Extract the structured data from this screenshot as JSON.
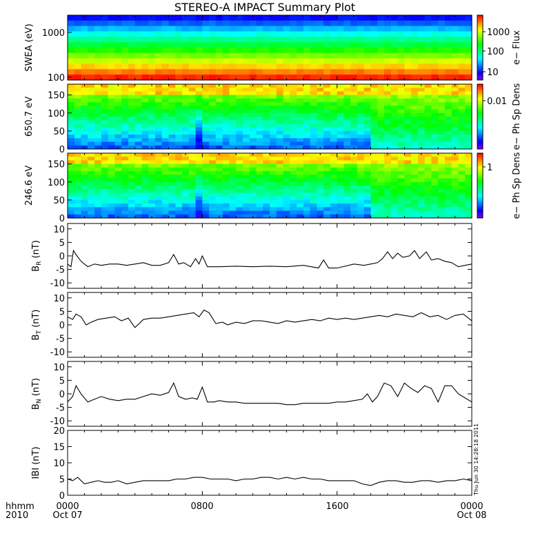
{
  "title": "STEREO-A IMPACT Summary Plot",
  "timestamp": "Thu Jun 30 14:28:18 2011",
  "colors": {
    "axis": "#000000",
    "trace": "#000000",
    "spectrogram_scale": [
      "#7f00ff",
      "#0000ff",
      "#0080ff",
      "#00ffff",
      "#00ff80",
      "#00ff00",
      "#80ff00",
      "#ffff00",
      "#ff8000",
      "#ff0000"
    ]
  },
  "x_axis": {
    "labels_top": [
      "0000",
      "0800",
      "1600",
      "0000"
    ],
    "labels_bottom": [
      "Oct 07",
      "",
      "",
      "Oct 08"
    ],
    "corner_label_top": "hhmm",
    "corner_label_bottom": "2010"
  },
  "chart_data": [
    {
      "type": "heatmap",
      "ylabel": "SWEA (eV)",
      "yscale": "log",
      "ylim": [
        95,
        2000
      ],
      "yticks": [
        "1000",
        "100"
      ],
      "colorbar_label": "e− Flux",
      "colorbar_ticks": [
        "1000",
        "100",
        "10"
      ],
      "x_hours": [
        0,
        24
      ],
      "energy_eV": [
        100,
        150,
        200,
        300,
        500,
        700,
        1000,
        1500,
        2000
      ],
      "level": [
        0.95,
        0.9,
        0.85,
        0.75,
        0.6,
        0.5,
        0.4,
        0.25,
        0.1
      ]
    },
    {
      "type": "heatmap",
      "ylabel": "650.7 eV",
      "ylim": [
        0,
        180
      ],
      "yticks": [
        "150",
        "100",
        "50",
        "0"
      ],
      "colorbar_label": "e− Ph Sp Dens",
      "colorbar_ticks": [
        "0.01"
      ],
      "x_hours": [
        0,
        24
      ],
      "pitch_angle_deg": [
        0,
        180
      ]
    },
    {
      "type": "heatmap",
      "ylabel": "246.6 eV",
      "ylim": [
        0,
        180
      ],
      "yticks": [
        "150",
        "100",
        "50",
        "0"
      ],
      "colorbar_label": "e− Ph Sp Dens",
      "colorbar_ticks": [
        "1"
      ],
      "x_hours": [
        0,
        24
      ],
      "pitch_angle_deg": [
        0,
        180
      ]
    },
    {
      "type": "line",
      "ylabel": "B_R (nT)",
      "ylabel_main": "B",
      "ylabel_sub": "R",
      "ylabel_unit": "(nT)",
      "ylim": [
        -12,
        12
      ],
      "yticks": [
        "10",
        "5",
        "0",
        "-5",
        "-10"
      ],
      "series": [
        {
          "x": [
            0,
            0.2,
            0.35,
            0.5,
            0.8,
            1.2,
            1.6,
            2.0,
            2.5,
            3,
            3.5,
            4,
            4.5,
            5,
            5.5,
            6,
            6.3,
            6.6,
            6.9,
            7.3,
            7.6,
            7.8,
            8.0,
            8.3,
            9,
            10,
            11,
            12,
            13,
            14,
            14.9,
            15.2,
            15.5,
            16,
            17,
            17.6,
            18,
            18.4,
            18.7,
            19.0,
            19.3,
            19.6,
            19.9,
            20.3,
            20.6,
            20.9,
            21.3,
            21.6,
            22,
            22.4,
            22.8,
            23.2,
            23.6,
            24
          ],
          "y": [
            -3,
            -4,
            2,
            0.5,
            -2,
            -4,
            -3,
            -3.5,
            -3,
            -3,
            -3.5,
            -3,
            -2.5,
            -3.5,
            -3.5,
            -2.5,
            0.5,
            -3,
            -2.5,
            -4,
            -1,
            -3,
            0,
            -4,
            -4,
            -3.8,
            -4,
            -3.8,
            -4,
            -3.5,
            -4.5,
            -1.5,
            -4.5,
            -4.5,
            -3,
            -3.5,
            -3,
            -2.5,
            -1,
            1.5,
            -1,
            1,
            -0.5,
            0,
            2,
            -1,
            1.5,
            -1.5,
            -1,
            -2,
            -2.5,
            -4,
            -3.5,
            -3
          ]
        }
      ]
    },
    {
      "type": "line",
      "ylabel": "B_T (nT)",
      "ylabel_main": "B",
      "ylabel_sub": "T",
      "ylabel_unit": "(nT)",
      "ylim": [
        -12,
        12
      ],
      "yticks": [
        "10",
        "5",
        "0",
        "-5",
        "-10"
      ],
      "series": [
        {
          "x": [
            0,
            0.3,
            0.5,
            0.8,
            1.1,
            1.4,
            1.8,
            2.3,
            2.8,
            3.2,
            3.6,
            4.0,
            4.5,
            5,
            5.5,
            6,
            6.5,
            7,
            7.5,
            7.8,
            8.1,
            8.4,
            8.8,
            9.2,
            9.5,
            10,
            10.5,
            11,
            11.5,
            12,
            12.5,
            13,
            13.5,
            14,
            14.5,
            15,
            15.5,
            16,
            16.5,
            17,
            17.5,
            18,
            18.5,
            19,
            19.5,
            20,
            20.5,
            21,
            21.5,
            22,
            22.5,
            23,
            23.5,
            24
          ],
          "y": [
            3,
            2,
            4,
            3,
            0,
            1,
            2,
            2.5,
            3,
            1.5,
            2.5,
            -1,
            2,
            2.5,
            2.5,
            3,
            3.5,
            4,
            4.5,
            3,
            5.5,
            4.5,
            0.5,
            1,
            0,
            1,
            0.5,
            1.5,
            1.5,
            1,
            0.5,
            1.5,
            1,
            1.5,
            2,
            1.5,
            2.5,
            2,
            2.5,
            2,
            2.5,
            3,
            3.5,
            3,
            4,
            3.5,
            3,
            4.5,
            3,
            3.5,
            2,
            3.5,
            4,
            1.5
          ]
        }
      ]
    },
    {
      "type": "line",
      "ylabel": "B_N (nT)",
      "ylabel_main": "B",
      "ylabel_sub": "N",
      "ylabel_unit": "(nT)",
      "ylim": [
        -12,
        12
      ],
      "yticks": [
        "10",
        "5",
        "0",
        "-5",
        "-10"
      ],
      "series": [
        {
          "x": [
            0,
            0.3,
            0.5,
            0.8,
            1.2,
            1.6,
            2.0,
            2.5,
            3,
            3.5,
            4,
            4.5,
            5,
            5.5,
            6,
            6.3,
            6.6,
            7,
            7.4,
            7.7,
            8.0,
            8.3,
            8.7,
            9,
            9.5,
            10,
            10.5,
            11,
            11.5,
            12,
            12.5,
            13,
            13.5,
            14,
            14.5,
            15,
            15.5,
            16,
            16.5,
            17,
            17.5,
            17.8,
            18.1,
            18.4,
            18.8,
            19.2,
            19.6,
            20,
            20.4,
            20.8,
            21.2,
            21.6,
            22,
            22.4,
            22.8,
            23.2,
            23.6,
            24
          ],
          "y": [
            -3,
            -1,
            3,
            0,
            -3,
            -2,
            -1,
            -2,
            -2.5,
            -2,
            -2,
            -1,
            0,
            -0.5,
            0.5,
            4,
            -1,
            -2,
            -1.5,
            -2,
            2.5,
            -3,
            -3,
            -2.5,
            -3,
            -3,
            -3.5,
            -3.5,
            -3.5,
            -3.5,
            -3.5,
            -4,
            -4,
            -3.5,
            -3.5,
            -3.5,
            -3.5,
            -3,
            -3,
            -2.5,
            -2,
            0,
            -3,
            -1,
            4,
            3,
            -1,
            4,
            2,
            0.5,
            3,
            2,
            -3,
            3,
            3,
            0,
            -1.5,
            -3
          ]
        }
      ]
    },
    {
      "type": "line",
      "ylabel": "|B| (nT)",
      "ylabel_main": "IBI",
      "ylabel_sub": "",
      "ylabel_unit": "(nT)",
      "ylim": [
        0,
        20
      ],
      "yticks": [
        "20",
        "15",
        "10",
        "5",
        "0"
      ],
      "series": [
        {
          "x": [
            0,
            0.3,
            0.6,
            1,
            1.4,
            1.8,
            2.2,
            2.6,
            3,
            3.5,
            4,
            4.5,
            5,
            5.5,
            6,
            6.5,
            7,
            7.5,
            8,
            8.5,
            9,
            9.5,
            10,
            10.5,
            11,
            11.5,
            12,
            12.5,
            13,
            13.5,
            14,
            14.5,
            15,
            15.5,
            16,
            16.5,
            17,
            17.5,
            18,
            18.5,
            19,
            19.5,
            20,
            20.5,
            21,
            21.5,
            22,
            22.5,
            23,
            23.5,
            24
          ],
          "y": [
            5,
            4.5,
            5.5,
            3.5,
            4,
            4.5,
            4,
            4,
            4.5,
            3.5,
            4,
            4.5,
            4.5,
            4.5,
            4.5,
            5,
            5,
            5.5,
            5.5,
            5,
            5,
            5,
            4.5,
            5,
            5,
            5.5,
            5.5,
            5,
            5.5,
            5,
            5.5,
            5,
            5,
            4.5,
            4.5,
            4.5,
            4.5,
            3.5,
            3,
            4,
            4.5,
            4.5,
            4,
            4,
            4.5,
            4.5,
            4,
            4.5,
            4.5,
            5,
            4.5
          ]
        }
      ]
    }
  ]
}
